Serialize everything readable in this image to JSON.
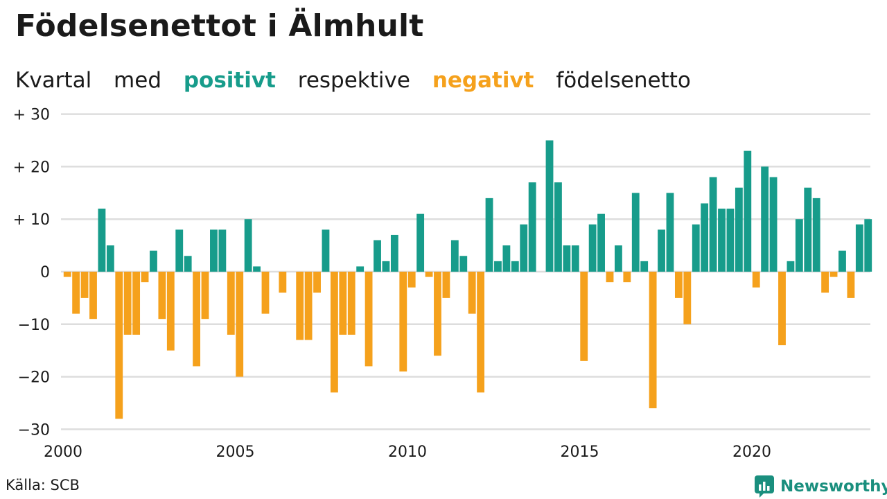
{
  "title": "Födelsenettot i Älmhult",
  "subtitle": {
    "part1": "Kvartal",
    "part2": "med",
    "positive": "positivt",
    "part3": "respektive",
    "negative": "negativt",
    "part4": "födelsenetto"
  },
  "source": "Källa: SCB",
  "brand": "Newsworthy",
  "colors": {
    "positive": "#179c8b",
    "negative": "#f5a11c",
    "grid": "#dddddd"
  },
  "chart_data": {
    "type": "bar",
    "title": "Födelsenettot i Älmhult",
    "start": "2000Q1",
    "frequency": "quarterly",
    "values": [
      -1,
      -8,
      -5,
      -9,
      12,
      5,
      -28,
      -12,
      -12,
      -2,
      4,
      -9,
      -15,
      8,
      3,
      -18,
      -9,
      8,
      8,
      -12,
      -20,
      10,
      1,
      -8,
      0,
      -4,
      0,
      -13,
      -13,
      -4,
      8,
      -23,
      -12,
      -12,
      1,
      -18,
      6,
      2,
      7,
      -19,
      -3,
      11,
      -1,
      -16,
      -5,
      6,
      3,
      -8,
      -23,
      14,
      2,
      5,
      2,
      9,
      17,
      0,
      25,
      17,
      5,
      5,
      -17,
      9,
      11,
      -2,
      5,
      -2,
      15,
      2,
      -26,
      8,
      15,
      -5,
      -10,
      9,
      13,
      18,
      12,
      12,
      16,
      23,
      -3,
      20,
      18,
      -14,
      2,
      10,
      16,
      14,
      -4,
      -1,
      4,
      -5,
      9,
      10
    ],
    "x_ticks": [
      "2000",
      "2005",
      "2010",
      "2015",
      "2020"
    ],
    "y_ticks": [
      "+ 30",
      "+ 20",
      "+ 10",
      "0",
      "−10",
      "−20",
      "−30"
    ],
    "ylim": [
      -30,
      30
    ],
    "grid": true
  }
}
